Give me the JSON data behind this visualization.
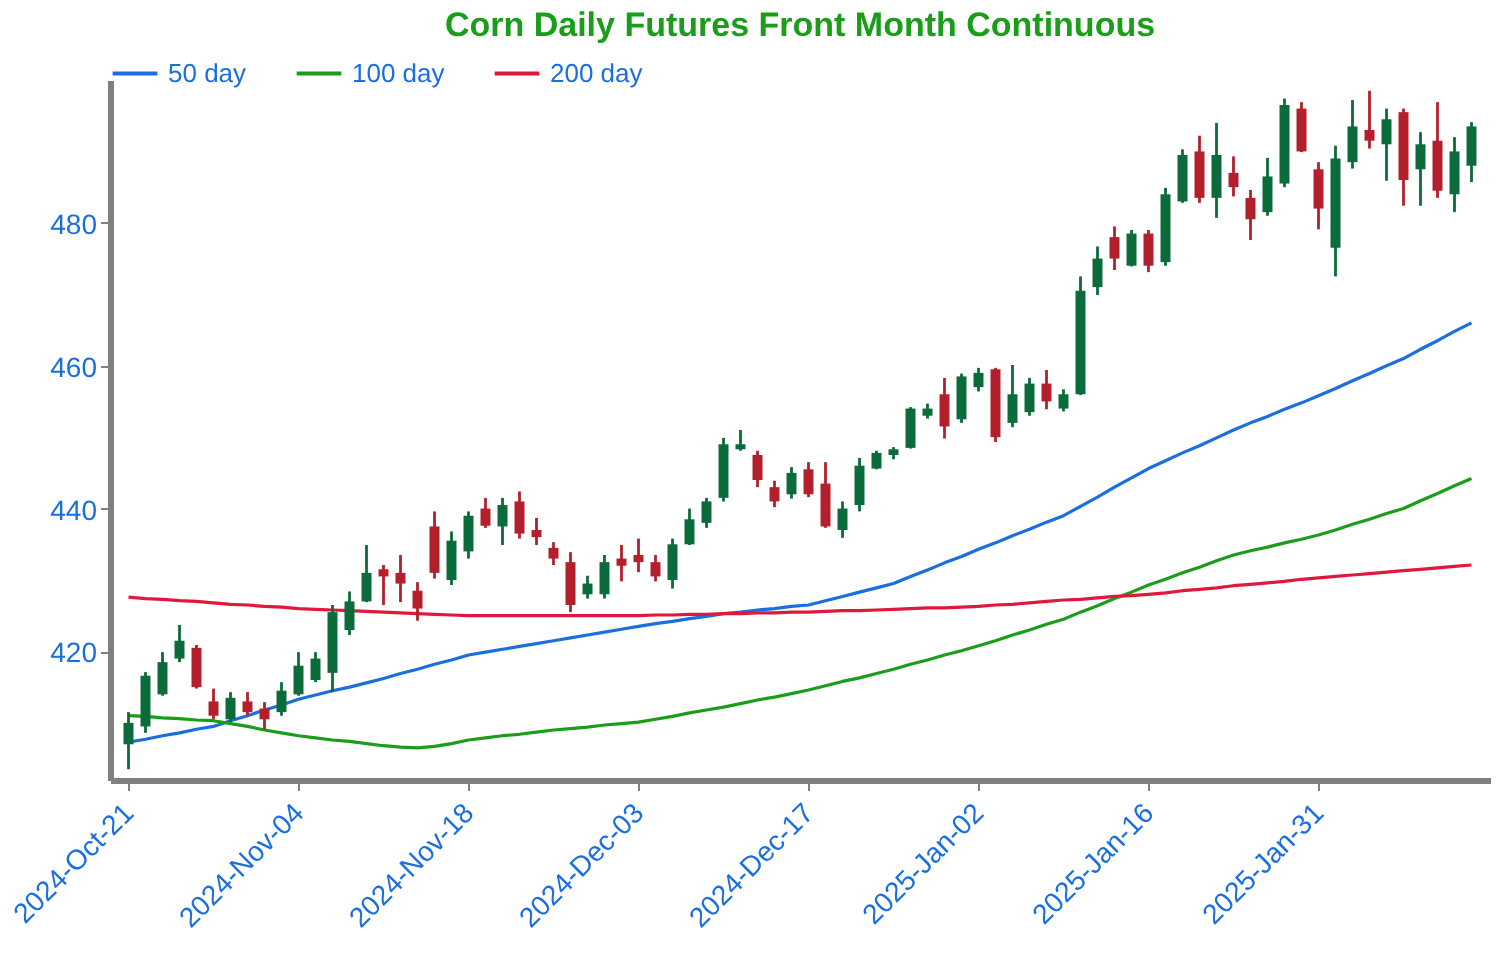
{
  "chart_data": {
    "type": "candlestick",
    "title": "Corn Daily Futures Front Month Continuous",
    "categories": [
      "2024-Oct-21",
      null,
      null,
      null,
      null,
      null,
      null,
      null,
      null,
      null,
      "2024-Nov-04",
      null,
      null,
      null,
      null,
      null,
      null,
      null,
      null,
      null,
      "2024-Nov-18",
      null,
      null,
      null,
      null,
      null,
      null,
      null,
      null,
      null,
      "2024-Dec-03",
      null,
      null,
      null,
      null,
      null,
      null,
      null,
      null,
      null,
      "2024-Dec-17",
      null,
      null,
      null,
      null,
      null,
      null,
      null,
      null,
      null,
      "2025-Jan-02",
      null,
      null,
      null,
      null,
      null,
      null,
      null,
      null,
      null,
      "2025-Jan-16",
      null,
      null,
      null,
      null,
      null,
      null,
      null,
      null,
      null,
      "2025-Jan-31",
      null,
      null,
      null,
      null,
      null,
      null,
      null,
      null,
      null
    ],
    "ohlc": [
      [
        407,
        411.5,
        403.5,
        410
      ],
      [
        409.5,
        417.1,
        408.6,
        416.6
      ],
      [
        414,
        419.9,
        413.8,
        418.5
      ],
      [
        419,
        423.7,
        418.5,
        421.5
      ],
      [
        420.5,
        420.9,
        414.8,
        415
      ],
      [
        413,
        414.8,
        410.5,
        411
      ],
      [
        410.5,
        414.3,
        410.1,
        413.5
      ],
      [
        413,
        414.3,
        411,
        411.5
      ],
      [
        412,
        412.9,
        409.1,
        410.5
      ],
      [
        411.5,
        415.7,
        411,
        414.5
      ],
      [
        414,
        419.9,
        413.8,
        418
      ],
      [
        416,
        419.9,
        415.7,
        419
      ],
      [
        417,
        426.5,
        414.3,
        425.5
      ],
      [
        423,
        428.4,
        422.3,
        427
      ],
      [
        427,
        434.9,
        426.9,
        431
      ],
      [
        431.5,
        432.1,
        426.5,
        430.5
      ],
      [
        431,
        433.5,
        426.9,
        429.5
      ],
      [
        428.5,
        429.7,
        424.3,
        426
      ],
      [
        437.5,
        439.6,
        430.2,
        431
      ],
      [
        430,
        436.8,
        429.3,
        435.5
      ],
      [
        434,
        439.6,
        433,
        439
      ],
      [
        440,
        441.5,
        437.3,
        437.6
      ],
      [
        437.5,
        441.5,
        434.9,
        440.5
      ],
      [
        441,
        442.4,
        435.8,
        436.5
      ],
      [
        437,
        438.7,
        434.9,
        436
      ],
      [
        434.5,
        435.3,
        432.1,
        433
      ],
      [
        432.5,
        433.9,
        425.5,
        426.5
      ],
      [
        428,
        430.6,
        427.4,
        429.5
      ],
      [
        428,
        433.5,
        427.4,
        432.5
      ],
      [
        433,
        434.9,
        429.8,
        432
      ],
      [
        433.5,
        435.8,
        431.1,
        432.5
      ],
      [
        432.5,
        433.5,
        429.8,
        430.5
      ],
      [
        430,
        435.8,
        428.8,
        435
      ],
      [
        435,
        440,
        434.9,
        438.5
      ],
      [
        438,
        441.5,
        437.3,
        441
      ],
      [
        441.5,
        449.9,
        441,
        449
      ],
      [
        448.3,
        451,
        448.1,
        449
      ],
      [
        447.5,
        448.1,
        443,
        444
      ],
      [
        443,
        443.9,
        440.2,
        441
      ],
      [
        442,
        445.8,
        441.4,
        445
      ],
      [
        445.5,
        446.5,
        441.6,
        442
      ],
      [
        443.5,
        446.5,
        437.3,
        437.5
      ],
      [
        437,
        441,
        435.9,
        440
      ],
      [
        440.5,
        447.1,
        439.6,
        446
      ],
      [
        445.6,
        448.1,
        445.5,
        447.8
      ],
      [
        447.5,
        448.6,
        446.9,
        448.3
      ],
      [
        448.5,
        454.2,
        448.4,
        454
      ],
      [
        453,
        454.7,
        452.6,
        454
      ],
      [
        456,
        458.3,
        449.8,
        451.5
      ],
      [
        452.5,
        458.9,
        452,
        458.5
      ],
      [
        457,
        459.7,
        456.4,
        459
      ],
      [
        459.5,
        459.7,
        449.3,
        450
      ],
      [
        452,
        460.1,
        451.4,
        456
      ],
      [
        453.5,
        458.3,
        453,
        457.5
      ],
      [
        457.5,
        459.4,
        453.9,
        455
      ],
      [
        454,
        456.7,
        453.6,
        456
      ],
      [
        456,
        472.5,
        455.9,
        470.5
      ],
      [
        471,
        476.7,
        469.9,
        475
      ],
      [
        478,
        479.5,
        473.4,
        475
      ],
      [
        474,
        479,
        473.9,
        478.5
      ],
      [
        478.5,
        479,
        473.1,
        474
      ],
      [
        474.5,
        484.9,
        474,
        484
      ],
      [
        483,
        490.3,
        482.8,
        489.5
      ],
      [
        490,
        492.2,
        482.8,
        483.5
      ],
      [
        483.5,
        494,
        480.7,
        489.5
      ],
      [
        487,
        489.3,
        483.7,
        485
      ],
      [
        483.5,
        484.6,
        477.6,
        480.5
      ],
      [
        481.5,
        489.1,
        481,
        486.5
      ],
      [
        485.5,
        497.4,
        485,
        496.5
      ],
      [
        496,
        496.9,
        489.9,
        490
      ],
      [
        487.5,
        488.5,
        479.1,
        482
      ],
      [
        476.5,
        490.8,
        472.5,
        489
      ],
      [
        488.5,
        497.2,
        487.6,
        493.5
      ],
      [
        493,
        498.5,
        490.4,
        491.5
      ],
      [
        491,
        496,
        485.9,
        494.5
      ],
      [
        495.5,
        496,
        482.4,
        486
      ],
      [
        487.5,
        492.7,
        482.4,
        491
      ],
      [
        491.5,
        496.9,
        483.5,
        484.5
      ],
      [
        484,
        492,
        481.5,
        490
      ],
      [
        488,
        494.1,
        485.7,
        493.5
      ]
    ],
    "series": [
      {
        "name": "50 day",
        "type": "line",
        "color": "#1a6fe0",
        "values": [
          407.3,
          407.7,
          408.2,
          408.6,
          409.1,
          409.5,
          410.3,
          411.0,
          411.8,
          412.5,
          413.3,
          413.9,
          414.5,
          415.0,
          415.6,
          416.2,
          416.9,
          417.5,
          418.2,
          418.8,
          419.5,
          419.9,
          420.3,
          420.7,
          421.1,
          421.5,
          421.9,
          422.3,
          422.7,
          423.1,
          423.5,
          423.9,
          424.2,
          424.6,
          424.9,
          425.3,
          425.5,
          425.8,
          426.0,
          426.3,
          426.5,
          427.1,
          427.7,
          428.3,
          428.9,
          429.5,
          430.5,
          431.4,
          432.4,
          433.3,
          434.3,
          435.2,
          436.2,
          437.1,
          438.1,
          439.0,
          440.3,
          441.6,
          443.0,
          444.3,
          445.6,
          446.7,
          447.8,
          448.8,
          449.9,
          451.0,
          452.0,
          452.9,
          453.9,
          454.8,
          455.8,
          456.8,
          457.9,
          458.9,
          460.0,
          461.0,
          462.3,
          463.5,
          464.8,
          466.0
        ]
      },
      {
        "name": "100 day",
        "type": "line",
        "color": "#1a9e1a",
        "values": [
          411.0,
          410.9,
          410.7,
          410.6,
          410.4,
          410.3,
          409.9,
          409.5,
          409.0,
          408.6,
          408.2,
          407.9,
          407.6,
          407.4,
          407.1,
          406.8,
          406.6,
          406.5,
          406.7,
          407.1,
          407.6,
          407.9,
          408.2,
          408.4,
          408.7,
          409.0,
          409.2,
          409.4,
          409.7,
          409.9,
          410.1,
          410.5,
          410.9,
          411.4,
          411.8,
          412.2,
          412.7,
          413.2,
          413.6,
          414.1,
          414.6,
          415.2,
          415.8,
          416.3,
          416.9,
          417.5,
          418.2,
          418.8,
          419.5,
          420.1,
          420.8,
          421.5,
          422.3,
          423.0,
          423.8,
          424.5,
          425.5,
          426.4,
          427.4,
          428.3,
          429.3,
          430.1,
          431.0,
          431.8,
          432.7,
          433.5,
          434.1,
          434.6,
          435.2,
          435.7,
          436.3,
          437.0,
          437.8,
          438.5,
          439.3,
          440.0,
          441.1,
          442.1,
          443.2,
          444.2
        ]
      },
      {
        "name": "200 day",
        "type": "line",
        "color": "#e0193c",
        "values": [
          427.6,
          427.4,
          427.3,
          427.1,
          427.0,
          426.8,
          426.6,
          426.5,
          426.3,
          426.2,
          426.0,
          425.9,
          425.8,
          425.7,
          425.6,
          425.5,
          425.4,
          425.3,
          425.2,
          425.1,
          425.0,
          425.0,
          425.0,
          425.0,
          425.0,
          425.0,
          425.0,
          425.0,
          425.0,
          425.0,
          425.0,
          425.1,
          425.1,
          425.2,
          425.2,
          425.3,
          425.3,
          425.4,
          425.4,
          425.5,
          425.5,
          425.6,
          425.7,
          425.7,
          425.8,
          425.9,
          426.0,
          426.1,
          426.1,
          426.2,
          426.3,
          426.5,
          426.6,
          426.8,
          427.0,
          427.2,
          427.3,
          427.5,
          427.7,
          427.8,
          428.0,
          428.2,
          428.5,
          428.7,
          428.9,
          429.2,
          429.4,
          429.6,
          429.8,
          430.1,
          430.3,
          430.5,
          430.7,
          430.9,
          431.1,
          431.3,
          431.5,
          431.7,
          431.9,
          432.1
        ]
      }
    ],
    "ylim": [
      402,
      500
    ],
    "yticks": [
      420,
      440,
      460,
      480
    ],
    "legend": "top"
  }
}
